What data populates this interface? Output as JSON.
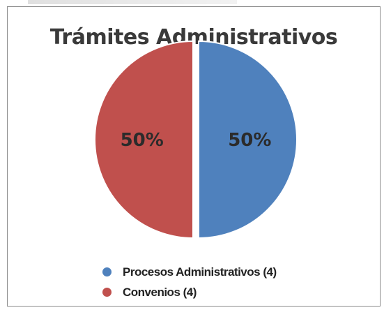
{
  "chart_data": {
    "type": "pie",
    "title": "Trámites Administrativos",
    "slices": [
      {
        "name": "Procesos Administrativos (4)",
        "value": 4,
        "label": "50%",
        "color": "#4f81bd"
      },
      {
        "name": "Convenios (4)",
        "value": 4,
        "label": "50%",
        "color": "#c0504d"
      }
    ],
    "legend_position": "bottom"
  }
}
